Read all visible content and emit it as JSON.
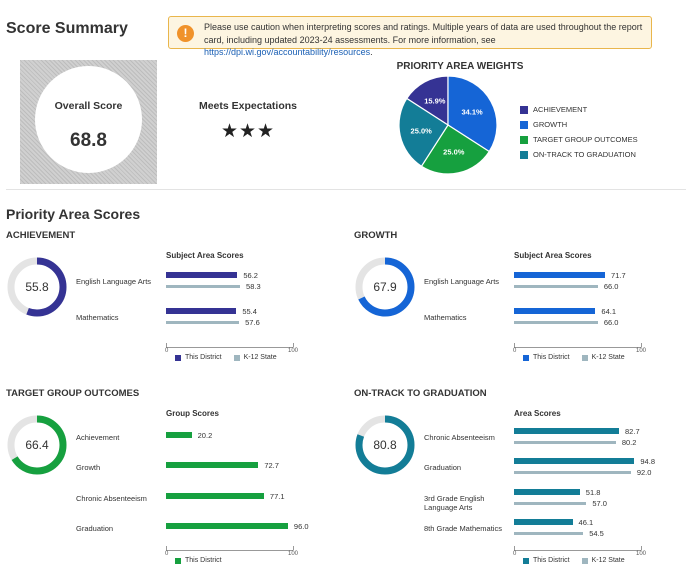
{
  "page": {
    "title": "Score Summary",
    "caution_text": "Please use caution when interpreting scores and ratings. Multiple years of data are used throughout the report card, including updated 2023-24 assessments. For more information, see ",
    "caution_link": "https://dpi.wi.gov/accountability/resources",
    "caution_link_suffix": ".",
    "caution_icon": "exclamation-icon"
  },
  "overall": {
    "label": "Overall Score",
    "value": "68.8"
  },
  "rating": {
    "label": "Meets Expectations",
    "stars": "★★★"
  },
  "weights": {
    "title": "PRIORITY AREA WEIGHTS",
    "slices": [
      {
        "name": "ACHIEVEMENT",
        "value": 15.9,
        "label": "15.9%",
        "color": "#353394"
      },
      {
        "name": "GROWTH",
        "value": 34.1,
        "label": "34.1%",
        "color": "#1565d6"
      },
      {
        "name": "TARGET GROUP OUTCOMES",
        "value": 25.0,
        "label": "25.0%",
        "color": "#16a03f"
      },
      {
        "name": "ON-TRACK TO GRADUATION",
        "value": 25.0,
        "label": "25.0%",
        "color": "#137d97"
      }
    ]
  },
  "priority": {
    "title": "Priority Area Scores",
    "axis_min": "0",
    "axis_max": "100",
    "legend_district": "This District",
    "legend_state": "K-12 State",
    "state_color": "#9fb6bf",
    "panels": [
      {
        "title": "ACHIEVEMENT",
        "score": 55.8,
        "score_label": "55.8",
        "color": "#353394",
        "sub_title": "Subject Area Scores",
        "rows": [
          {
            "label": "English Language Arts",
            "district": 56.2,
            "district_label": "56.2",
            "state": 58.3,
            "state_label": "58.3"
          },
          {
            "label": "Mathematics",
            "district": 55.4,
            "district_label": "55.4",
            "state": 57.6,
            "state_label": "57.6"
          }
        ]
      },
      {
        "title": "GROWTH",
        "score": 67.9,
        "score_label": "67.9",
        "color": "#1565d6",
        "sub_title": "Subject Area Scores",
        "rows": [
          {
            "label": "English Language Arts",
            "district": 71.7,
            "district_label": "71.7",
            "state": 66.0,
            "state_label": "66.0"
          },
          {
            "label": "Mathematics",
            "district": 64.1,
            "district_label": "64.1",
            "state": 66.0,
            "state_label": "66.0"
          }
        ]
      },
      {
        "title": "TARGET GROUP OUTCOMES",
        "score": 66.4,
        "score_label": "66.4",
        "color": "#16a03f",
        "sub_title": "Group Scores",
        "rows": [
          {
            "label": "Achievement",
            "district": 20.2,
            "district_label": "20.2"
          },
          {
            "label": "Growth",
            "district": 72.7,
            "district_label": "72.7"
          },
          {
            "label": "Chronic Absenteeism",
            "district": 77.1,
            "district_label": "77.1"
          },
          {
            "label": "Graduation",
            "district": 96.0,
            "district_label": "96.0"
          }
        ]
      },
      {
        "title": "ON-TRACK TO GRADUATION",
        "score": 80.8,
        "score_label": "80.8",
        "color": "#137d97",
        "sub_title": "Area Scores",
        "rows": [
          {
            "label": "Chronic Absenteeism",
            "district": 82.7,
            "district_label": "82.7",
            "state": 80.2,
            "state_label": "80.2"
          },
          {
            "label": "Graduation",
            "district": 94.8,
            "district_label": "94.8",
            "state": 92.0,
            "state_label": "92.0"
          },
          {
            "label": "3rd Grade English Language Arts",
            "district": 51.8,
            "district_label": "51.8",
            "state": 57.0,
            "state_label": "57.0"
          },
          {
            "label": "8th Grade Mathematics",
            "district": 46.1,
            "district_label": "46.1",
            "state": 54.5,
            "state_label": "54.5"
          }
        ]
      }
    ]
  }
}
